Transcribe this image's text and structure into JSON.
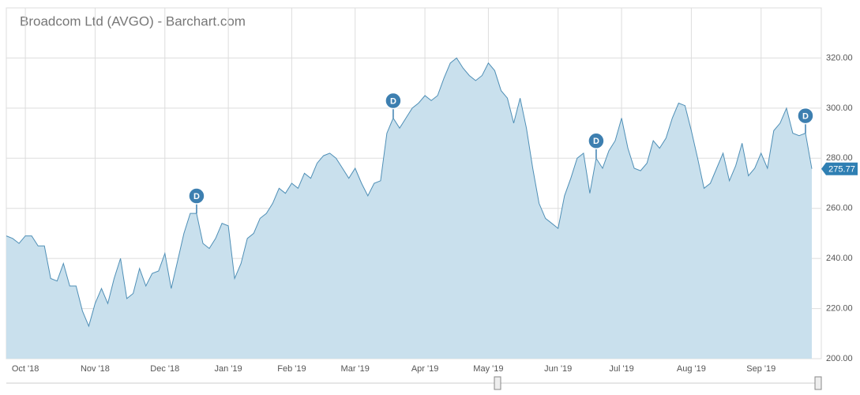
{
  "chart_data": {
    "type": "area",
    "title": "Broadcom Ltd (AVGO) - Barchart.com",
    "categories": [
      null,
      null,
      null,
      "Oct '18",
      null,
      null,
      null,
      null,
      null,
      null,
      null,
      null,
      null,
      null,
      "Nov '18",
      null,
      null,
      null,
      null,
      null,
      null,
      null,
      null,
      null,
      null,
      "Dec '18",
      null,
      null,
      null,
      null,
      null,
      null,
      null,
      null,
      null,
      "Jan '19",
      null,
      null,
      null,
      null,
      null,
      null,
      null,
      null,
      null,
      "Feb '19",
      null,
      null,
      null,
      null,
      null,
      null,
      null,
      null,
      null,
      "Mar '19",
      null,
      null,
      null,
      null,
      null,
      null,
      null,
      null,
      null,
      null,
      "Apr '19",
      null,
      null,
      null,
      null,
      null,
      null,
      null,
      null,
      null,
      "May '19",
      null,
      null,
      null,
      null,
      null,
      null,
      null,
      null,
      null,
      null,
      "Jun '19",
      null,
      null,
      null,
      null,
      null,
      null,
      null,
      null,
      null,
      "Jul '19",
      null,
      null,
      null,
      null,
      null,
      null,
      null,
      null,
      null,
      null,
      "Aug '19",
      null,
      null,
      null,
      null,
      null,
      null,
      null,
      null,
      null,
      null,
      "Sep '19",
      null,
      null,
      null,
      null,
      null,
      null,
      null,
      null
    ],
    "series": [
      {
        "color": "#4f8fb6",
        "fill": "#c9e0ed",
        "values": [
          249,
          248,
          246,
          249,
          249,
          245,
          245,
          232,
          231,
          238,
          229,
          229,
          219,
          213,
          222,
          228,
          222,
          232,
          240,
          224,
          226,
          236,
          229,
          234,
          235,
          242,
          228,
          239,
          250,
          258,
          258,
          246,
          244,
          248,
          254,
          253,
          232,
          238,
          248,
          250,
          256,
          258,
          262,
          268,
          266,
          270,
          268,
          274,
          272,
          278,
          281,
          282,
          280,
          276,
          272,
          276,
          270,
          265,
          270,
          271,
          290,
          296,
          292,
          296,
          300,
          302,
          305,
          303,
          305,
          312,
          318,
          320,
          316,
          313,
          311,
          313,
          318,
          315,
          307,
          304,
          294,
          304,
          292,
          276,
          262,
          256,
          254,
          252,
          265,
          272,
          280,
          282,
          266,
          280,
          276,
          283,
          287,
          296,
          284,
          276,
          275,
          278,
          287,
          284,
          288,
          296,
          302,
          301,
          291,
          280,
          268,
          270,
          276,
          282,
          271,
          277,
          286,
          273,
          276,
          282,
          276,
          291,
          294,
          300,
          290,
          289,
          290,
          275.77
        ]
      }
    ],
    "annotations": [
      {
        "text": "D",
        "point": 30
      },
      {
        "text": "D",
        "point": 61
      },
      {
        "text": "D",
        "point": 93
      },
      {
        "text": "D",
        "point": 126
      }
    ],
    "ylim": [
      200,
      340
    ],
    "yticks": [
      {
        "value": 200,
        "label": "200.00"
      },
      {
        "value": 220,
        "label": "220.00"
      },
      {
        "value": 240,
        "label": "240.00"
      },
      {
        "value": 260,
        "label": "260.00"
      },
      {
        "value": 280,
        "label": "280.00"
      },
      {
        "value": 300,
        "label": "300.00"
      },
      {
        "value": 320,
        "label": "320.00"
      }
    ],
    "grid": true
  }
}
